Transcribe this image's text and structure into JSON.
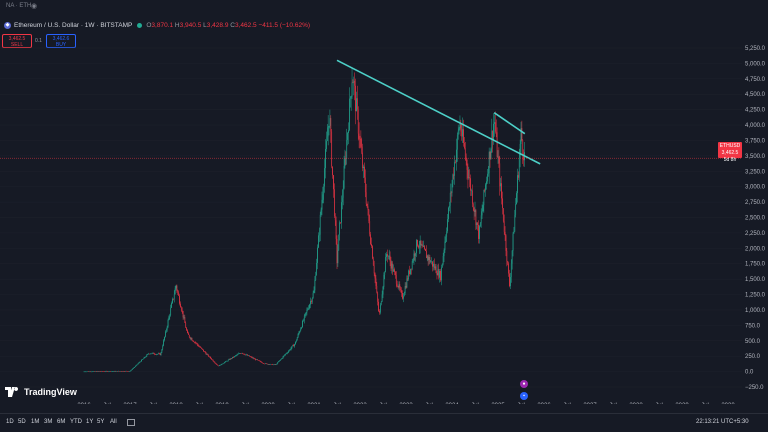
{
  "topbar": {
    "ticker": "NA · ETH",
    "eye_icon": "eye-icon"
  },
  "legend": {
    "symbol": "Ethereum / U.S. Dollar · 1W · BITSTAMP",
    "open_label": "O",
    "open": "3,870.1",
    "high_label": "H",
    "high": "3,940.5",
    "low_label": "L",
    "low": "3,428.9",
    "close_label": "C",
    "close": "3,462.5",
    "change": "−411.5 (−10.62%)"
  },
  "trade": {
    "sell_price": "3,462.5",
    "sell_label": "SELL",
    "spread": "0.1",
    "buy_price": "3,462.6",
    "buy_label": "BUY"
  },
  "price_scale": {
    "ticks": [
      "5,250.0",
      "5,000.0",
      "4,750.0",
      "4,500.0",
      "4,250.0",
      "4,000.0",
      "3,750.0",
      "3,500.0",
      "3,250.0",
      "3,000.0",
      "2,750.0",
      "2,500.0",
      "2,250.0",
      "2,000.0",
      "1,750.0",
      "1,500.0",
      "1,250.0",
      "1,000.0",
      "750.0",
      "500.0",
      "250.0",
      "0.0",
      "−250.0"
    ],
    "current_price": "3,462.5",
    "current_symbol": "ETHUSD",
    "countdown": "5d 8h"
  },
  "time_scale": {
    "labels": [
      "2016",
      "Jul",
      "2017",
      "Jul",
      "2018",
      "Jul",
      "2019",
      "Jul",
      "2020",
      "Jul",
      "2021",
      "Jul",
      "2022",
      "Jul",
      "2023",
      "Jul",
      "2024",
      "Jul",
      "2025",
      "Jul",
      "2026",
      "Jul",
      "2027",
      "Jul",
      "2028",
      "Jul",
      "2029",
      "Jul",
      "2030"
    ]
  },
  "chart_data": {
    "type": "candlestick",
    "ylim": [
      -250,
      5250
    ],
    "colors": {
      "up": "#22ab94",
      "down": "#f23645",
      "trendline": "#4dd0c8",
      "background": "#161a25"
    },
    "annotation_points": [
      {
        "date": "2016-01",
        "price": 1
      },
      {
        "date": "2017-01",
        "price": 8
      },
      {
        "date": "2017-06",
        "price": 300
      },
      {
        "date": "2017-09",
        "price": 280
      },
      {
        "date": "2018-01",
        "price": 1400
      },
      {
        "date": "2018-04",
        "price": 600
      },
      {
        "date": "2018-12",
        "price": 90
      },
      {
        "date": "2019-06",
        "price": 310
      },
      {
        "date": "2019-12",
        "price": 130
      },
      {
        "date": "2020-03",
        "price": 110
      },
      {
        "date": "2020-08",
        "price": 450
      },
      {
        "date": "2021-01",
        "price": 1300
      },
      {
        "date": "2021-05",
        "price": 4200
      },
      {
        "date": "2021-07",
        "price": 1800
      },
      {
        "date": "2021-11",
        "price": 4860
      },
      {
        "date": "2022-06",
        "price": 900
      },
      {
        "date": "2022-08",
        "price": 1950
      },
      {
        "date": "2022-12",
        "price": 1200
      },
      {
        "date": "2023-04",
        "price": 2100
      },
      {
        "date": "2023-10",
        "price": 1550
      },
      {
        "date": "2024-03",
        "price": 4050
      },
      {
        "date": "2024-08",
        "price": 2200
      },
      {
        "date": "2024-12",
        "price": 4100
      },
      {
        "date": "2025-04",
        "price": 1400
      },
      {
        "date": "2025-07",
        "price": 3850
      },
      {
        "date": "2025-08",
        "price": 3462
      }
    ],
    "trendlines": [
      {
        "from": {
          "date": "2021-07",
          "price": 5050
        },
        "to": {
          "date": "2025-12",
          "price": 3370
        }
      },
      {
        "from": {
          "date": "2024-12",
          "price": 4200
        },
        "to": {
          "date": "2025-08",
          "price": 3860
        }
      }
    ],
    "current_price": 3462.5
  },
  "logo": {
    "text": "TradingView"
  },
  "bottombar": {
    "ranges": [
      "1D",
      "5D",
      "1M",
      "3M",
      "6M",
      "YTD",
      "1Y",
      "5Y",
      "All"
    ],
    "clock": "22:13:21 UTC+5:30"
  }
}
